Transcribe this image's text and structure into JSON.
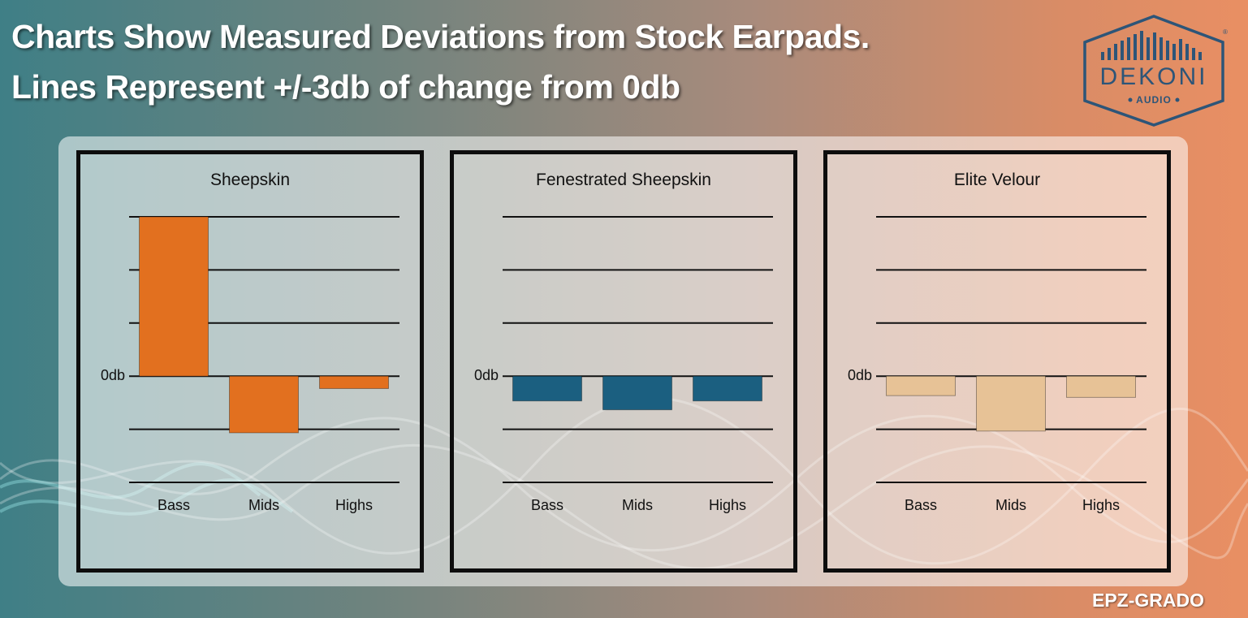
{
  "header": {
    "line1": "Charts Show Measured Deviations from Stock Earpads.",
    "line2": "Lines Represent +/-3db of change from 0db"
  },
  "logo": {
    "brand": "DEKONI",
    "sub": "AUDIO",
    "registered": "®"
  },
  "watermark": "EPZ-GRADO",
  "colors": {
    "sheepskin": "#e2701f",
    "fenestrated": "#1b5f80",
    "elite_velour": "#e7c296",
    "gridline": "#111111"
  },
  "chart_data": [
    {
      "type": "bar",
      "title": "Sheepskin",
      "zero_label": "0db",
      "categories": [
        "Bass",
        "Mids",
        "Highs"
      ],
      "values": [
        9,
        -3.2,
        -0.7
      ],
      "gridlines": [
        9,
        6,
        3,
        0,
        -3,
        -6
      ],
      "ylim": [
        -6,
        9
      ],
      "color": "#e2701f"
    },
    {
      "type": "bar",
      "title": "Fenestrated Sheepskin",
      "zero_label": "0db",
      "categories": [
        "Bass",
        "Mids",
        "Highs"
      ],
      "values": [
        -1.4,
        -1.9,
        -1.4
      ],
      "gridlines": [
        9,
        6,
        3,
        0,
        -3,
        -6
      ],
      "ylim": [
        -6,
        9
      ],
      "color": "#1b5f80"
    },
    {
      "type": "bar",
      "title": "Elite Velour",
      "zero_label": "0db",
      "categories": [
        "Bass",
        "Mids",
        "Highs"
      ],
      "values": [
        -1.1,
        -3.1,
        -1.2
      ],
      "gridlines": [
        9,
        6,
        3,
        0,
        -3,
        -6
      ],
      "ylim": [
        -6,
        9
      ],
      "color": "#e7c296"
    }
  ]
}
